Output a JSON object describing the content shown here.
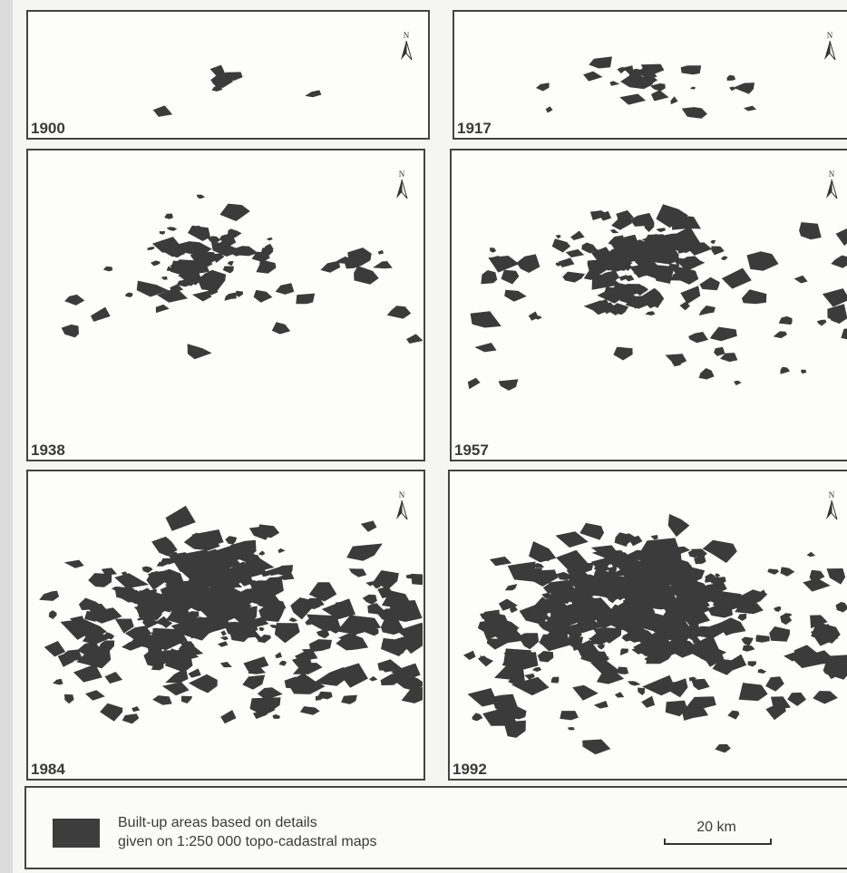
{
  "panels": [
    {
      "year": "1900",
      "north": "N"
    },
    {
      "year": "1917",
      "north": "N"
    },
    {
      "year": "1938",
      "north": "N"
    },
    {
      "year": "1957",
      "north": "N"
    },
    {
      "year": "1984",
      "north": "N"
    },
    {
      "year": "1992",
      "north": "N"
    }
  ],
  "legend": {
    "line1": "Built-up areas based on details",
    "line2": "given on 1:250 000 topo-cadastral maps",
    "scale": "20 km"
  }
}
